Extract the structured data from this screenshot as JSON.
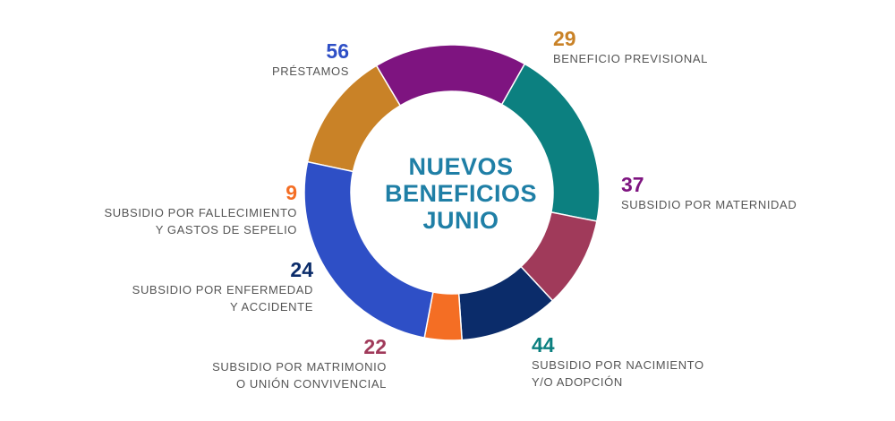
{
  "chart_data": {
    "type": "pie",
    "variant": "donut",
    "title_lines": [
      "NUEVOS",
      "BENEFICIOS",
      "JUNIO"
    ],
    "slices": [
      {
        "value": 29,
        "value_label": "29",
        "lines": [
          "BENEFICIO PREVISIONAL"
        ],
        "color": "#c98227"
      },
      {
        "value": 37,
        "value_label": "37",
        "lines": [
          "SUBSIDIO POR MATERNIDAD"
        ],
        "color": "#7e1480"
      },
      {
        "value": 44,
        "value_label": "44",
        "lines": [
          "SUBSIDIO POR NACIMIENTO",
          "Y/O ADOPCIÓN"
        ],
        "color": "#0c8080"
      },
      {
        "value": 22,
        "value_label": "22",
        "lines": [
          "SUBSIDIO POR MATRIMONIO",
          "O UNIÓN CONVIVENCIAL"
        ],
        "color": "#a03a5a"
      },
      {
        "value": 24,
        "value_label": "24",
        "lines": [
          "SUBSIDIO POR ENFERMEDAD",
          "Y ACCIDENTE"
        ],
        "color": "#0b2c6a"
      },
      {
        "value": 9,
        "value_label": "9",
        "lines": [
          "SUBSIDIO POR FALLECIMIENTO",
          "Y GASTOS DE SEPELIO"
        ],
        "color": "#f46e24"
      },
      {
        "value": 56,
        "value_label": "56",
        "lines": [
          "PRÉSTAMOS"
        ],
        "color": "#2e4fc6"
      }
    ],
    "legend": "none",
    "grid": false
  }
}
